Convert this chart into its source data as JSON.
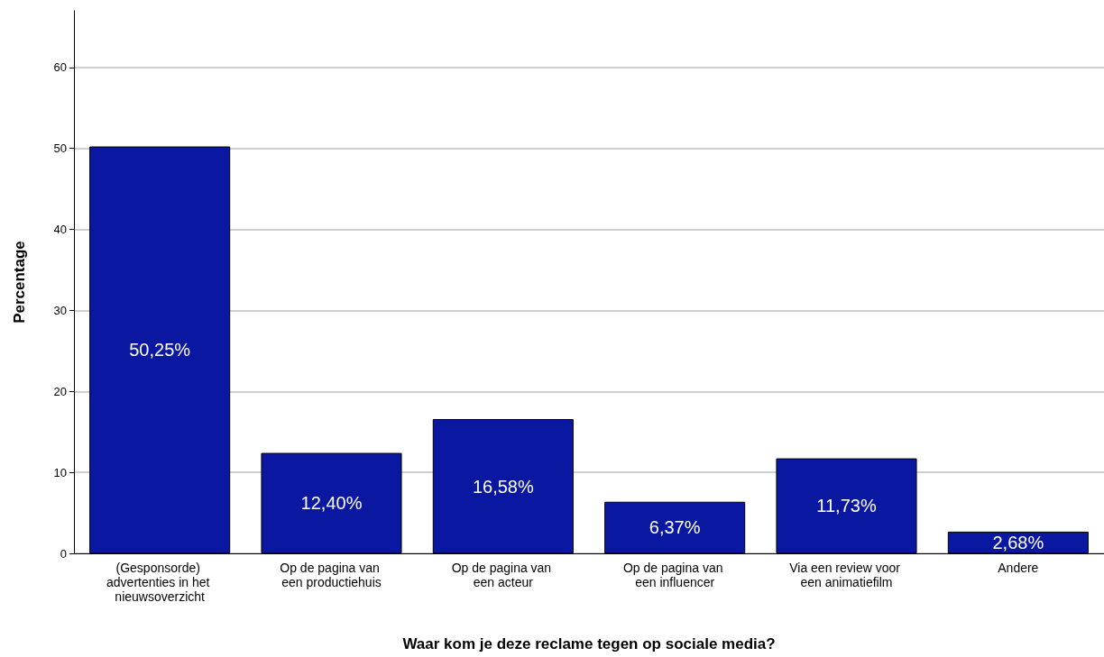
{
  "chart_data": {
    "type": "bar",
    "xlabel": "Waar kom je deze reclame tegen op sociale media?",
    "ylabel": "Percentage",
    "categories": [
      "(Gesponsorde) advertenties in het nieuwsoverzicht",
      "Op de pagina van een productiehuis",
      "Op de pagina van een acteur",
      "Op de pagina van een influencer",
      "Via een review voor een animatiefilm",
      "Andere"
    ],
    "values": [
      50.25,
      12.4,
      16.58,
      6.37,
      11.73,
      2.68
    ],
    "value_labels": [
      "50,25%",
      "12,40%",
      "16,58%",
      "6,37%",
      "11,73%",
      "2,68%"
    ],
    "color": "#0a17a0",
    "ylim": [
      0,
      67
    ],
    "yticks": [
      0,
      10,
      20,
      30,
      40,
      50,
      60
    ],
    "grid": "y"
  }
}
